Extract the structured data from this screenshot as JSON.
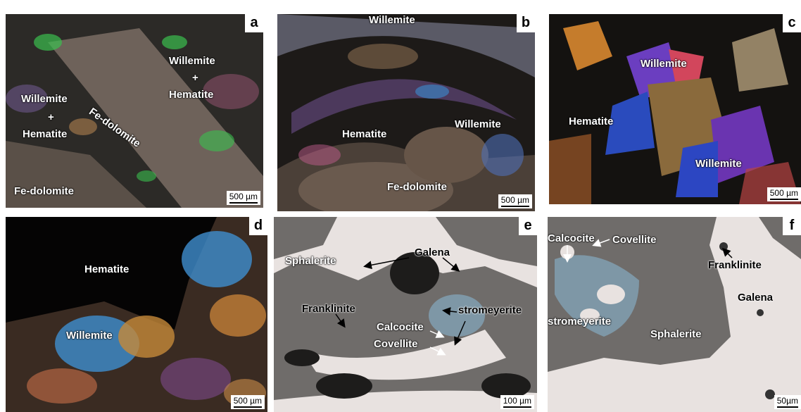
{
  "panels": [
    {
      "id": "a",
      "letter": "a",
      "scale": "500 µm",
      "labels": [
        "Willemite",
        "+",
        "Hematite",
        "Fe-dolomite",
        "Willemite",
        "+",
        "Hematite",
        "Fe-dolomite"
      ]
    },
    {
      "id": "b",
      "letter": "b",
      "scale": "500 µm",
      "labels": [
        "Willemite",
        "Hematite",
        "Willemite",
        "Fe-dolomite"
      ]
    },
    {
      "id": "c",
      "letter": "c",
      "scale": "500 µm",
      "labels": [
        "Willemite",
        "Hematite",
        "Willemite"
      ]
    },
    {
      "id": "d",
      "letter": "d",
      "scale": "500 µm",
      "labels": [
        "Hematite",
        "Willemite"
      ]
    },
    {
      "id": "e",
      "letter": "e",
      "scale": "100 µm",
      "labels": [
        "Sphalerite",
        "Galena",
        "Franklinite",
        "stromeyerite",
        "Calcocite",
        "Covellite"
      ]
    },
    {
      "id": "f",
      "letter": "f",
      "scale": "50µm",
      "labels": [
        "Calcocite",
        "Covellite",
        "Franklinite",
        "Galena",
        "stromeyerite",
        "Sphalerite"
      ]
    }
  ],
  "colors": {
    "crossed_polar_bg": "#2a2622",
    "reflected_light_bg": "#6f6c6a",
    "galena": "#e8e2e0",
    "covellite": "#7e97a6"
  }
}
